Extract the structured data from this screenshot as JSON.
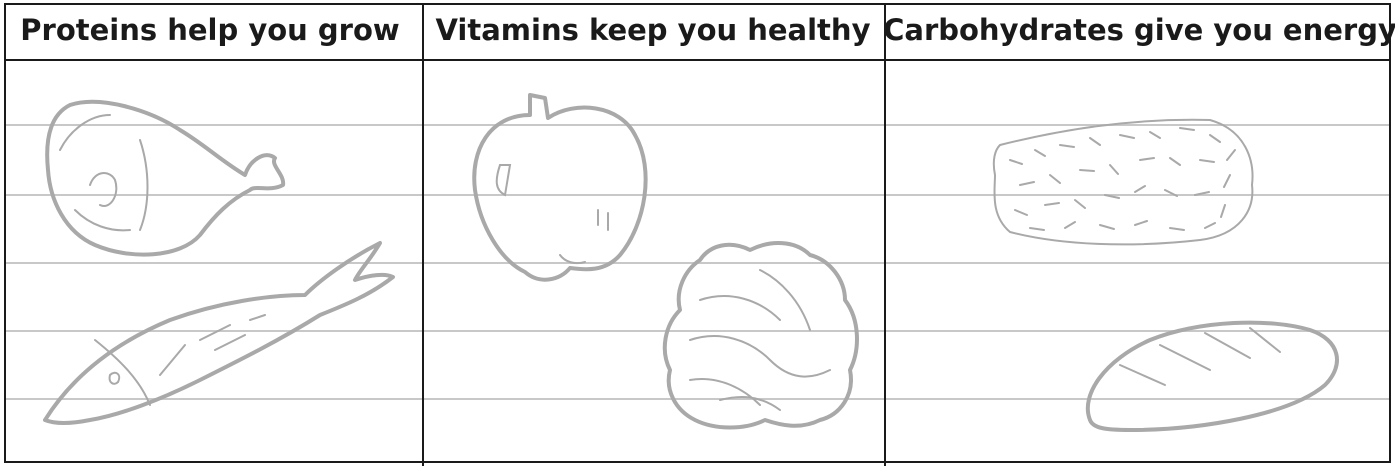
{
  "table": {
    "headers": [
      "Proteins help you grow",
      "Vitamins keep you healthy",
      "Carbohydrates give you energy"
    ]
  }
}
